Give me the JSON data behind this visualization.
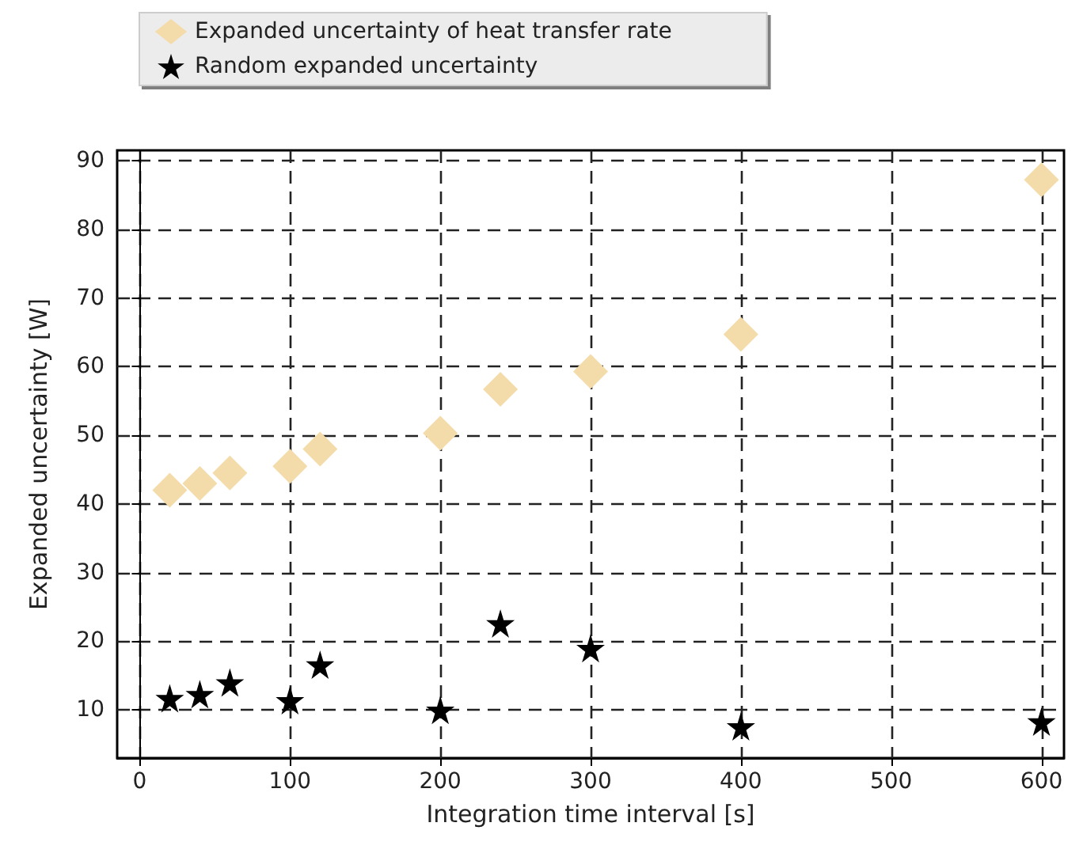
{
  "chart_data": {
    "type": "scatter",
    "xlabel": "Integration time interval [s]",
    "ylabel": "Expanded uncertainty [W]",
    "x": [
      20,
      40,
      60,
      100,
      120,
      200,
      240,
      300,
      400,
      600
    ],
    "series": [
      {
        "name": "Expanded uncertainty of heat transfer rate",
        "color": "#f3dcaa",
        "marker": "diamond",
        "values": [
          42,
          43,
          44.5,
          45.5,
          48,
          50.3,
          56.7,
          59.3,
          64.7,
          87.2
        ]
      },
      {
        "name": "Random expanded uncertainty",
        "color": "#000000",
        "marker": "star",
        "values": [
          11.7,
          12.3,
          14,
          11.4,
          16.6,
          10,
          22.6,
          19,
          7.6,
          8.3
        ]
      }
    ],
    "xlim": [
      -15,
      615
    ],
    "xticks": [
      0,
      100,
      200,
      300,
      400,
      500,
      600
    ],
    "ylim": [
      3,
      91.5
    ],
    "yticks": [
      10,
      20,
      30,
      40,
      50,
      60,
      70,
      80,
      90
    ],
    "grid": true,
    "line_style": "dashed",
    "legend": "top left"
  }
}
